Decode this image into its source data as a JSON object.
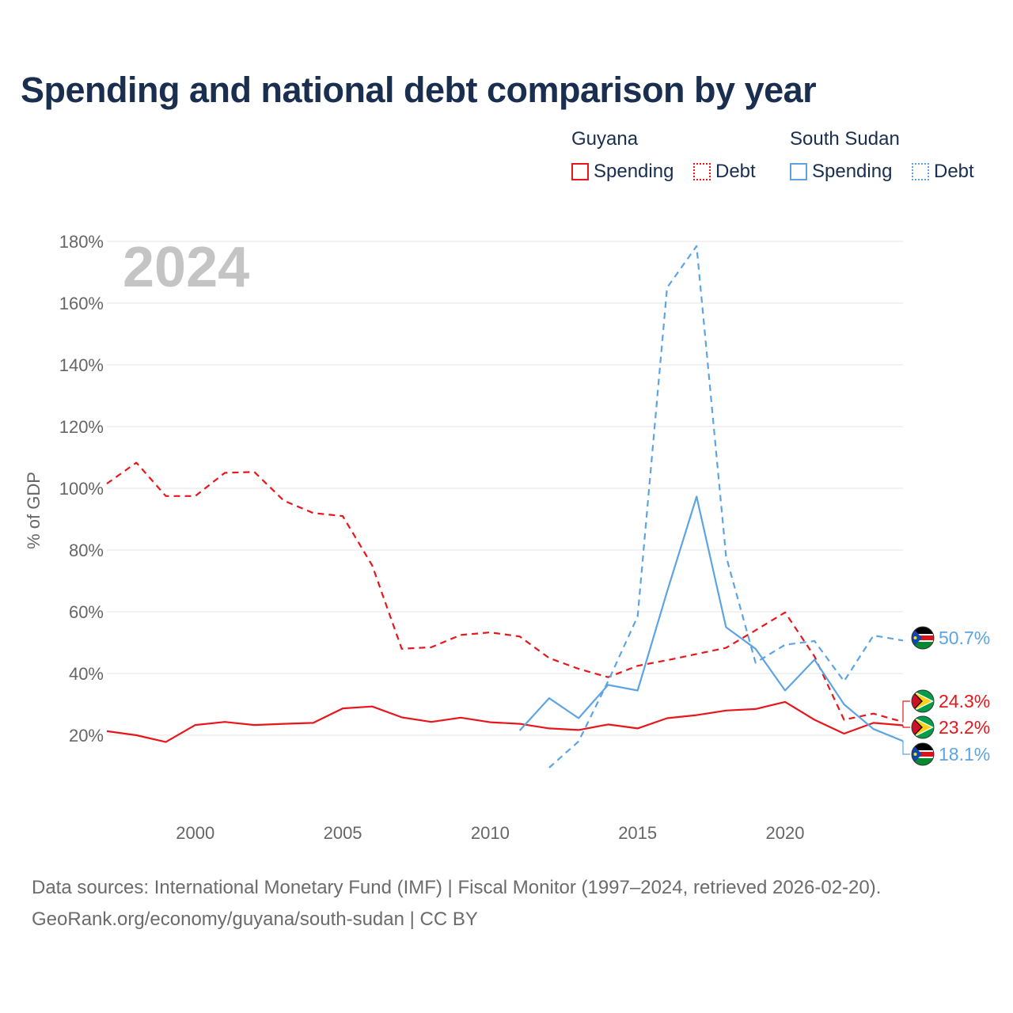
{
  "title": "Spending and national debt comparison by year",
  "legend": {
    "guyana_label": "Guyana",
    "south_sudan_label": "South Sudan",
    "spending_label": "Spending",
    "debt_label": "Debt"
  },
  "year_watermark": "2024",
  "colors": {
    "guyana": "#e8161b",
    "south_sudan": "#5da4e4",
    "grid": "#e6e6e6",
    "axis_text": "#666666"
  },
  "footer": {
    "line1": "Data sources: International Monetary Fund (IMF) | Fiscal Monitor (1997–2024, retrieved 2026-02-20).",
    "line2": "GeoRank.org/economy/guyana/south-sudan | CC BY"
  },
  "chart_data": {
    "type": "line",
    "title": "Spending and national debt comparison by year",
    "xlabel": "",
    "ylabel": "% of GDP",
    "xlim": [
      1997,
      2024
    ],
    "ylim": [
      0,
      180
    ],
    "yticks": [
      20,
      40,
      60,
      80,
      100,
      120,
      140,
      160,
      180
    ],
    "ytick_labels": [
      "20%",
      "40%",
      "60%",
      "80%",
      "100%",
      "120%",
      "140%",
      "160%",
      "180%"
    ],
    "xticks": [
      2000,
      2005,
      2010,
      2015,
      2020
    ],
    "xtick_labels": [
      "2000",
      "2005",
      "2010",
      "2015",
      "2020"
    ],
    "series": [
      {
        "name": "Guyana Debt",
        "country": "Guyana",
        "metric": "Debt",
        "style": "dashed",
        "color": "#e8161b",
        "x": [
          1997,
          1998,
          1999,
          2000,
          2001,
          2002,
          2003,
          2004,
          2005,
          2006,
          2007,
          2008,
          2009,
          2010,
          2011,
          2012,
          2013,
          2014,
          2015,
          2016,
          2017,
          2018,
          2019,
          2020,
          2021,
          2022,
          2023,
          2024
        ],
        "values": [
          101.5,
          108.3,
          97.5,
          97.5,
          105.0,
          105.3,
          96.0,
          92.0,
          91.0,
          75.0,
          48.0,
          48.5,
          52.5,
          53.3,
          52.0,
          45.0,
          41.5,
          38.8,
          42.5,
          44.3,
          46.3,
          48.3,
          54.0,
          59.8,
          45.5,
          25.0,
          27.0,
          24.3
        ]
      },
      {
        "name": "Guyana Spending",
        "country": "Guyana",
        "metric": "Spending",
        "style": "solid",
        "color": "#e8161b",
        "x": [
          1997,
          1998,
          1999,
          2000,
          2001,
          2002,
          2003,
          2004,
          2005,
          2006,
          2007,
          2008,
          2009,
          2010,
          2011,
          2012,
          2013,
          2014,
          2015,
          2016,
          2017,
          2018,
          2019,
          2020,
          2021,
          2022,
          2023,
          2024
        ],
        "values": [
          21.3,
          20.0,
          17.8,
          23.3,
          24.3,
          23.3,
          23.7,
          24.0,
          28.7,
          29.3,
          25.8,
          24.3,
          25.7,
          24.2,
          23.7,
          22.2,
          21.7,
          23.5,
          22.2,
          25.5,
          26.5,
          28.0,
          28.5,
          30.8,
          25.0,
          20.5,
          24.0,
          23.2
        ]
      },
      {
        "name": "South Sudan Debt",
        "country": "South Sudan",
        "metric": "Debt",
        "style": "dashed",
        "color": "#5da4e4",
        "x": [
          2012,
          2013,
          2014,
          2015,
          2016,
          2017,
          2018,
          2019,
          2020,
          2021,
          2022,
          2023,
          2024
        ],
        "values": [
          9.5,
          18.0,
          37.5,
          58.5,
          165.0,
          178.5,
          78.0,
          43.5,
          49.3,
          50.5,
          37.5,
          52.3,
          50.7
        ]
      },
      {
        "name": "South Sudan Spending",
        "country": "South Sudan",
        "metric": "Spending",
        "style": "solid",
        "color": "#5da4e4",
        "x": [
          2011,
          2012,
          2013,
          2014,
          2015,
          2016,
          2017,
          2018,
          2019,
          2020,
          2021,
          2022,
          2023,
          2024
        ],
        "values": [
          21.5,
          32.0,
          25.5,
          36.3,
          34.5,
          66.5,
          97.3,
          55.0,
          48.0,
          34.5,
          44.5,
          30.0,
          22.0,
          18.1
        ]
      }
    ],
    "end_labels": [
      {
        "text": "50.7%",
        "country": "South Sudan",
        "color": "#5da4e4",
        "value": 50.7,
        "series": "South Sudan Debt"
      },
      {
        "text": "24.3%",
        "country": "Guyana",
        "color": "#e8161b",
        "value": 24.3,
        "series": "Guyana Debt"
      },
      {
        "text": "23.2%",
        "country": "Guyana",
        "color": "#e8161b",
        "value": 23.2,
        "series": "Guyana Spending"
      },
      {
        "text": "18.1%",
        "country": "South Sudan",
        "color": "#5da4e4",
        "value": 18.1,
        "series": "South Sudan Spending"
      }
    ]
  }
}
